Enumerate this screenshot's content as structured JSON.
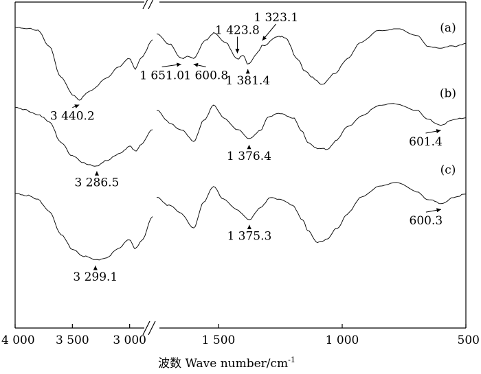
{
  "chart_data": {
    "type": "line",
    "title": "",
    "xlabel": "波数 Wave number/cm",
    "xlabel_superscript": "-1",
    "ylabel": "",
    "x_axis_reversed": true,
    "x_axis_broken": true,
    "x_break_between": [
      2800,
      1750
    ],
    "x_segments": [
      [
        4000,
        2800
      ],
      [
        1750,
        500
      ]
    ],
    "x_ticks": [
      {
        "value": 4000,
        "label": "4 000"
      },
      {
        "value": 3500,
        "label": "3 500"
      },
      {
        "value": 3000,
        "label": "3 000"
      },
      {
        "value": 1500,
        "label": "1 500"
      },
      {
        "value": 1000,
        "label": "1 000"
      },
      {
        "value": 500,
        "label": "500"
      }
    ],
    "y_ticks_shown": false,
    "series": [
      {
        "name": "(a)",
        "offset_rank": 1,
        "points_left": [
          [
            4000,
            95
          ],
          [
            3900,
            94
          ],
          [
            3800,
            92
          ],
          [
            3700,
            80
          ],
          [
            3600,
            55
          ],
          [
            3500,
            42
          ],
          [
            3440.2,
            38
          ],
          [
            3350,
            44
          ],
          [
            3200,
            55
          ],
          [
            3100,
            63
          ],
          [
            3000,
            70
          ],
          [
            2950,
            62
          ],
          [
            2900,
            70
          ],
          [
            2800,
            85
          ]
        ],
        "points_right": [
          [
            1750,
            90
          ],
          [
            1700,
            82
          ],
          [
            1651,
            70
          ],
          [
            1625,
            72
          ],
          [
            1600.8,
            70
          ],
          [
            1550,
            85
          ],
          [
            1520,
            90
          ],
          [
            1470,
            82
          ],
          [
            1423.8,
            70
          ],
          [
            1400,
            72
          ],
          [
            1381.4,
            66
          ],
          [
            1340,
            75
          ],
          [
            1323.1,
            80
          ],
          [
            1260,
            88
          ],
          [
            1230,
            86
          ],
          [
            1180,
            70
          ],
          [
            1150,
            60
          ],
          [
            1120,
            55
          ],
          [
            1080,
            50
          ],
          [
            1030,
            58
          ],
          [
            980,
            70
          ],
          [
            930,
            82
          ],
          [
            850,
            92
          ],
          [
            780,
            94
          ],
          [
            700,
            88
          ],
          [
            650,
            80
          ],
          [
            600,
            78
          ],
          [
            550,
            80
          ],
          [
            500,
            82
          ]
        ],
        "annotations": [
          {
            "label": "3 440.2",
            "x": 3440.2
          },
          {
            "label": "1 651.0",
            "x": 1651.0
          },
          {
            "label": "1 600.8",
            "x": 1600.8
          },
          {
            "label": "1 423.8",
            "x": 1423.8
          },
          {
            "label": "1 381.4",
            "x": 1381.4
          },
          {
            "label": "1 323.1",
            "x": 1323.1
          }
        ]
      },
      {
        "name": "(b)",
        "offset_rank": 2,
        "points_left": [
          [
            4000,
            90
          ],
          [
            3900,
            88
          ],
          [
            3800,
            85
          ],
          [
            3700,
            78
          ],
          [
            3600,
            62
          ],
          [
            3500,
            50
          ],
          [
            3400,
            44
          ],
          [
            3286.5,
            42
          ],
          [
            3200,
            46
          ],
          [
            3100,
            52
          ],
          [
            3000,
            58
          ],
          [
            2950,
            54
          ],
          [
            2900,
            60
          ],
          [
            2800,
            72
          ]
        ],
        "points_right": [
          [
            1750,
            88
          ],
          [
            1700,
            78
          ],
          [
            1650,
            72
          ],
          [
            1600,
            62
          ],
          [
            1560,
            80
          ],
          [
            1520,
            92
          ],
          [
            1480,
            82
          ],
          [
            1420,
            72
          ],
          [
            1376.4,
            64
          ],
          [
            1330,
            72
          ],
          [
            1300,
            82
          ],
          [
            1250,
            86
          ],
          [
            1200,
            82
          ],
          [
            1160,
            70
          ],
          [
            1140,
            62
          ],
          [
            1100,
            56
          ],
          [
            1060,
            56
          ],
          [
            1020,
            64
          ],
          [
            980,
            74
          ],
          [
            920,
            84
          ],
          [
            850,
            92
          ],
          [
            780,
            94
          ],
          [
            700,
            88
          ],
          [
            650,
            80
          ],
          [
            601.4,
            76
          ],
          [
            550,
            80
          ],
          [
            500,
            82
          ]
        ],
        "annotations": [
          {
            "label": "3 286.5",
            "x": 3286.5
          },
          {
            "label": "1 376.4",
            "x": 1376.4
          },
          {
            "label": "601.4",
            "x": 601.4
          }
        ]
      },
      {
        "name": "(c)",
        "offset_rank": 3,
        "points_left": [
          [
            4000,
            85
          ],
          [
            3900,
            83
          ],
          [
            3800,
            80
          ],
          [
            3700,
            72
          ],
          [
            3600,
            55
          ],
          [
            3500,
            45
          ],
          [
            3400,
            40
          ],
          [
            3299.1,
            37
          ],
          [
            3200,
            39
          ],
          [
            3100,
            45
          ],
          [
            3000,
            52
          ],
          [
            2950,
            45
          ],
          [
            2900,
            50
          ],
          [
            2800,
            68
          ]
        ],
        "points_right": [
          [
            1750,
            82
          ],
          [
            1700,
            76
          ],
          [
            1650,
            70
          ],
          [
            1600,
            60
          ],
          [
            1560,
            78
          ],
          [
            1520,
            90
          ],
          [
            1480,
            80
          ],
          [
            1420,
            72
          ],
          [
            1375.3,
            66
          ],
          [
            1330,
            74
          ],
          [
            1290,
            82
          ],
          [
            1250,
            80
          ],
          [
            1200,
            76
          ],
          [
            1160,
            66
          ],
          [
            1140,
            58
          ],
          [
            1100,
            50
          ],
          [
            1060,
            52
          ],
          [
            1020,
            60
          ],
          [
            980,
            70
          ],
          [
            920,
            82
          ],
          [
            850,
            90
          ],
          [
            780,
            92
          ],
          [
            700,
            86
          ],
          [
            650,
            80
          ],
          [
            600.3,
            77
          ],
          [
            550,
            82
          ],
          [
            500,
            84
          ]
        ],
        "annotations": [
          {
            "label": "3 299.1",
            "x": 3299.1
          },
          {
            "label": "1 375.3",
            "x": 1375.3
          },
          {
            "label": "600.3",
            "x": 600.3
          }
        ]
      }
    ]
  }
}
